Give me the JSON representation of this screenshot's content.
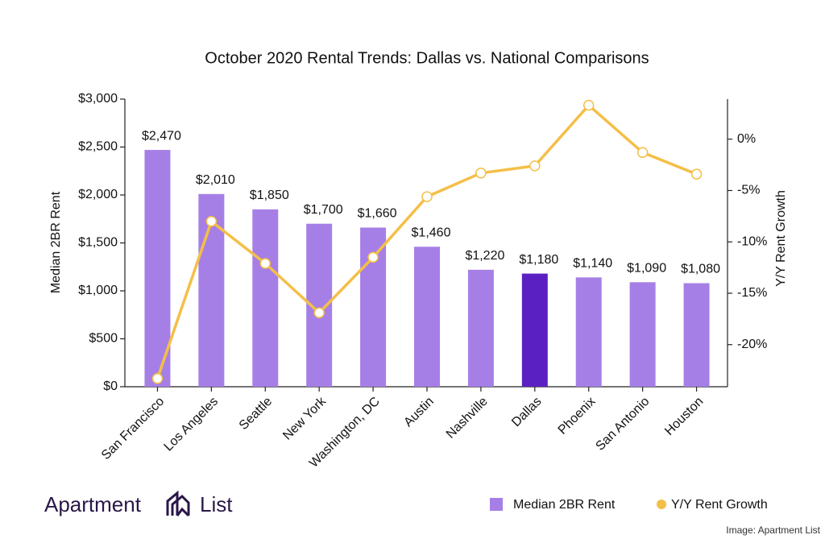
{
  "chart_data": {
    "type": "bar-line",
    "title": "October 2020 Rental Trends: Dallas vs. National Comparisons",
    "y_label": "Median 2BR Rent",
    "y2_label": "Y/Y Rent Growth",
    "categories": [
      "San Francisco",
      "Los Angeles",
      "Seattle",
      "New York",
      "Washington, DC",
      "Austin",
      "Nashville",
      "Dallas",
      "Phoenix",
      "San Antonio",
      "Houston"
    ],
    "series": [
      {
        "name": "Median 2BR Rent",
        "type": "bar",
        "color": "#a67fe6",
        "colors": [
          "#a67fe6",
          "#a67fe6",
          "#a67fe6",
          "#a67fe6",
          "#a67fe6",
          "#a67fe6",
          "#a67fe6",
          "#5b20c2",
          "#a67fe6",
          "#a67fe6",
          "#a67fe6"
        ],
        "values": [
          2470,
          2010,
          1850,
          1700,
          1660,
          1460,
          1220,
          1180,
          1140,
          1090,
          1080
        ],
        "value_labels": [
          "$2,470",
          "$2,010",
          "$1,850",
          "$1,700",
          "$1,660",
          "$1,460",
          "$1,220",
          "$1,180",
          "$1,140",
          "$1,090",
          "$1,080"
        ]
      },
      {
        "name": "Y/Y Rent Growth",
        "type": "line",
        "axis": "y2",
        "color": "#f4bf47",
        "values": [
          -23.3,
          -8.0,
          -12.1,
          -16.9,
          -11.5,
          -5.6,
          -3.3,
          -2.6,
          3.3,
          -1.3,
          -3.4
        ]
      }
    ],
    "ylim": [
      0,
      3000
    ],
    "yticks": [
      {
        "value": 0,
        "label": "$0"
      },
      {
        "value": 500,
        "label": "$500"
      },
      {
        "value": 1000,
        "label": "$1,000"
      },
      {
        "value": 1500,
        "label": "$1,500"
      },
      {
        "value": 2000,
        "label": "$2,000"
      },
      {
        "value": 2500,
        "label": "$2,500"
      },
      {
        "value": 3000,
        "label": "$3,000"
      }
    ],
    "y2lim": [
      -24.1,
      3.9
    ],
    "y2ticks": [
      {
        "value": 0,
        "label": "0%"
      },
      {
        "value": -5,
        "label": "-5%"
      },
      {
        "value": -10,
        "label": "-10%"
      },
      {
        "value": -15,
        "label": "-15%"
      },
      {
        "value": -20,
        "label": "-20%"
      }
    ],
    "grid": false,
    "legend": "bottom-right"
  },
  "footer": {
    "brand_left": "Apartment",
    "brand_right": "List",
    "credit": "Image: Apartment List"
  }
}
